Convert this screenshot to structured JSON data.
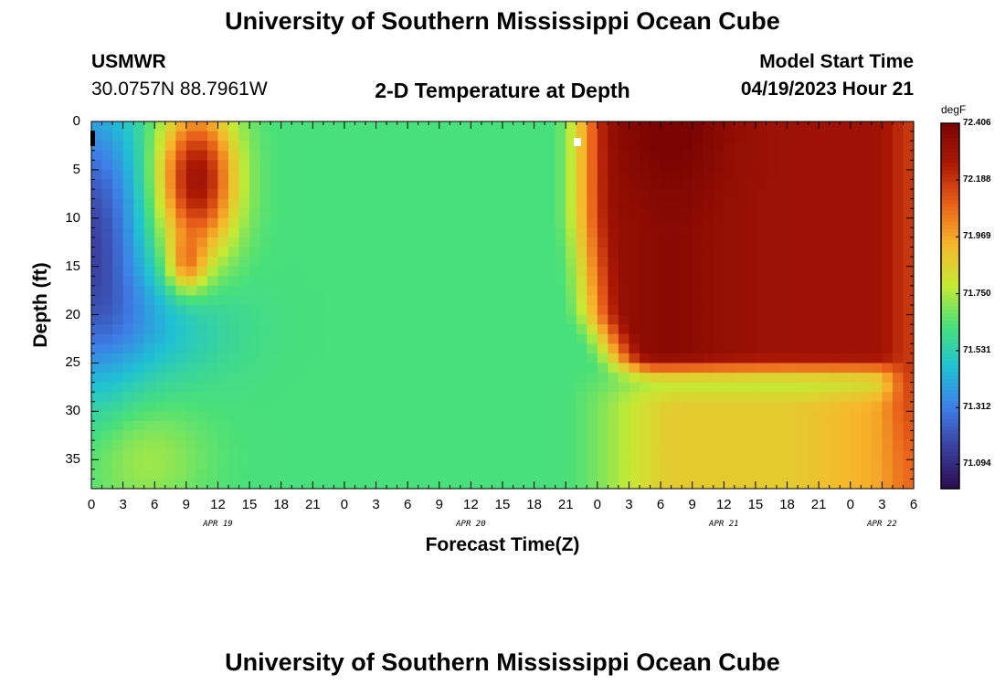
{
  "header": {
    "title": "University of Southern Mississippi Ocean Cube",
    "station_id": "USMWR",
    "coordinates": "30.0757N  88.7961W",
    "plot_title": "2-D Temperature at Depth",
    "start_label": "Model Start Time",
    "start_value": "04/19/2023 Hour 21"
  },
  "footer": {
    "title": "University of Southern Mississippi Ocean Cube"
  },
  "colors": {
    "scale": [
      "#2c0b4e",
      "#3a3f9e",
      "#3e7fe8",
      "#1fc1d4",
      "#49e07a",
      "#c5ea34",
      "#f7b72b",
      "#e9611a",
      "#ad1904",
      "#7b0403"
    ]
  },
  "chart_data": {
    "type": "heatmap",
    "title": "2-D Temperature at Depth",
    "xlabel": "Forecast Time(Z)",
    "ylabel": "Depth (ft)",
    "x_tick_labels": [
      "0",
      "3",
      "6",
      "9",
      "12",
      "15",
      "18",
      "21",
      "0",
      "3",
      "6",
      "9",
      "12",
      "15",
      "18",
      "21",
      "0",
      "3",
      "6",
      "9",
      "12",
      "15",
      "18",
      "21",
      "0",
      "3",
      "6"
    ],
    "x_hours_from_apr19_00z": [
      0,
      3,
      6,
      9,
      12,
      15,
      18,
      21,
      24,
      27,
      30,
      33,
      36,
      39,
      42,
      45,
      48,
      51,
      54,
      57,
      60,
      63,
      66,
      69,
      72,
      75,
      78
    ],
    "date_labels": [
      {
        "label": "APR 19",
        "hour": 12
      },
      {
        "label": "APR 20",
        "hour": 36
      },
      {
        "label": "APR 21",
        "hour": 60
      },
      {
        "label": "APR 22",
        "hour": 75
      }
    ],
    "y_ticks": [
      0,
      5,
      10,
      15,
      20,
      25,
      30,
      35
    ],
    "xlim": [
      0,
      78
    ],
    "ylim": [
      0,
      38
    ],
    "y_inverted": true,
    "colorbar": {
      "unit": "degF",
      "tick_labels": [
        "72.406",
        "72.188",
        "71.969",
        "71.750",
        "71.531",
        "71.312",
        "71.094"
      ],
      "min": 71.0,
      "max": 72.406
    },
    "description_points": [
      {
        "hour": 1,
        "depth": 10,
        "value": 71.15
      },
      {
        "hour": 10,
        "depth": 5,
        "value": 72.3
      },
      {
        "hour": 4,
        "depth": 35,
        "value": 71.83
      },
      {
        "hour": 30,
        "depth": 10,
        "value": 71.62
      },
      {
        "hour": 54,
        "depth": 5,
        "value": 72.42
      },
      {
        "hour": 60,
        "depth": 20,
        "value": 72.3
      },
      {
        "hour": 60,
        "depth": 35,
        "value": 71.9
      },
      {
        "hour": 78,
        "depth": 20,
        "value": 72.2
      }
    ]
  }
}
